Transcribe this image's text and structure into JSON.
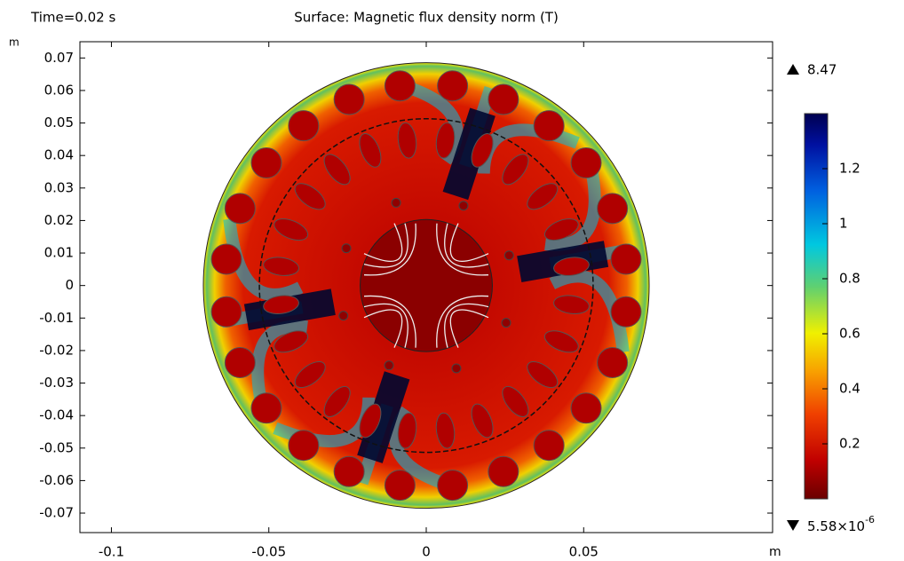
{
  "chart_data": {
    "type": "surface",
    "time_label": "Time=0.02 s",
    "title": "Surface: Magnetic flux density norm (T)",
    "x_unit": "m",
    "y_unit": "m",
    "xlim": [
      -0.11,
      0.11
    ],
    "xticks": [
      -0.1,
      -0.05,
      0,
      0.05
    ],
    "ylim": [
      -0.076,
      0.075
    ],
    "yticks": [
      -0.07,
      -0.06,
      -0.05,
      -0.04,
      -0.03,
      -0.02,
      -0.01,
      0,
      0.01,
      0.02,
      0.03,
      0.04,
      0.05,
      0.06,
      0.07
    ],
    "clim": [
      0,
      1.4
    ],
    "cticks": [
      0.2,
      0.4,
      0.6,
      0.8,
      1,
      1.2
    ],
    "color_range": {
      "max": 8.47,
      "min": {
        "value": 5.58e-06,
        "label": "5.58×10",
        "exponent": "-6"
      }
    }
  }
}
